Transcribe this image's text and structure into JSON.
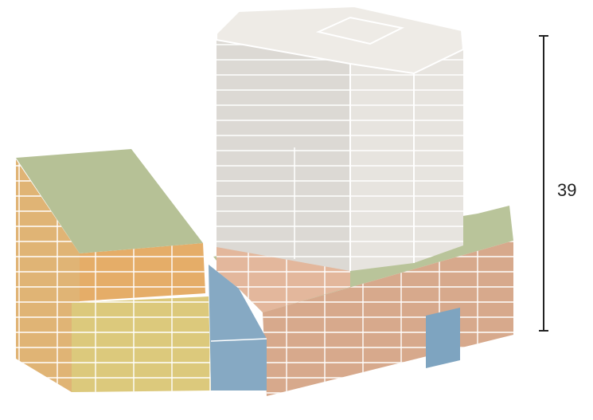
{
  "scale_bar": {
    "label": "39"
  }
}
